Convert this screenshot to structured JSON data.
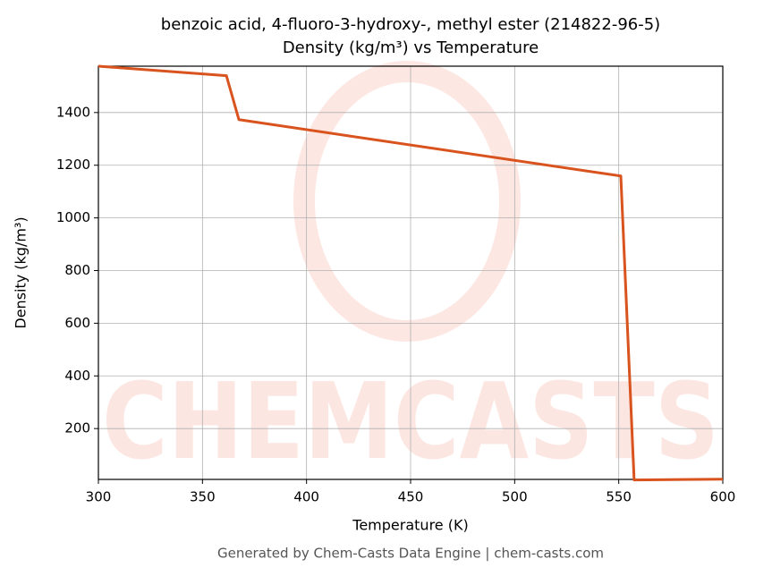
{
  "chart_data": {
    "type": "line",
    "title": "benzoic acid, 4-fluoro-3-hydroxy-, methyl ester (214822-96-5)",
    "subtitle": "Density (kg/m³) vs Temperature",
    "x_label": "Temperature (K)",
    "y_label": "Density (kg/m³)",
    "footer": "Generated by Chem-Casts Data Engine | chem-casts.com",
    "watermark": "CHEMCASTS",
    "x": [
      300,
      361.5,
      367.5,
      551,
      557.4,
      600
    ],
    "series": [
      {
        "name": "Density",
        "color": "#d9531e",
        "values": [
          1576,
          1540,
          1373,
          1159,
          5,
          8
        ]
      }
    ],
    "xlim": [
      300,
      600
    ],
    "xticks": [
      300,
      350,
      400,
      450,
      500,
      550,
      600
    ],
    "ylim": [
      7,
      1576
    ],
    "yticks": [
      200,
      400,
      600,
      800,
      1000,
      1200,
      1400
    ],
    "grid": true
  }
}
